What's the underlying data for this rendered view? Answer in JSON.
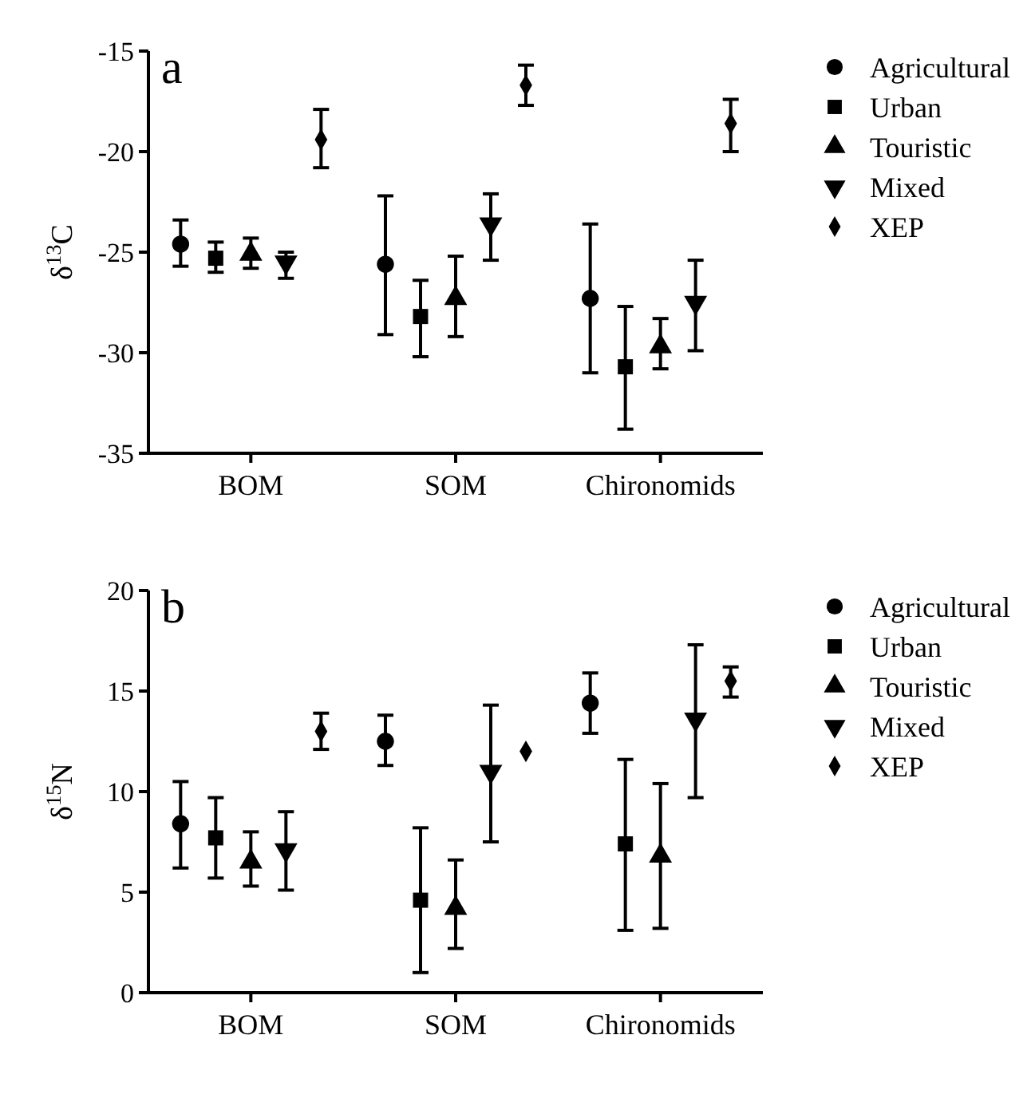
{
  "chart_data": [
    {
      "type": "scatter",
      "title": "a",
      "ylabel": "δ$^{13}$C",
      "categories": [
        "BOM",
        "SOM",
        "Chironomids"
      ],
      "ylim": [
        -35,
        -15
      ],
      "yticks": [
        -35,
        -30,
        -25,
        -20,
        -15
      ],
      "legend": "right",
      "grid": false,
      "series": [
        {
          "name": "Agricultural",
          "color": "#000000",
          "marker": "circle",
          "values": [
            -24.6,
            -25.6,
            -27.3
          ],
          "errors": [
            [
              -25.7,
              -23.4
            ],
            [
              -29.1,
              -22.2
            ],
            [
              -31.0,
              -23.6
            ]
          ]
        },
        {
          "name": "Urban",
          "color": "#000000",
          "marker": "square",
          "values": [
            -25.3,
            -28.2,
            -30.7
          ],
          "errors": [
            [
              -26.0,
              -24.5
            ],
            [
              -30.2,
              -26.4
            ],
            [
              -33.8,
              -27.7
            ]
          ]
        },
        {
          "name": "Touristic",
          "color": "#000000",
          "marker": "triangle",
          "values": [
            -25.1,
            -27.3,
            -29.7
          ],
          "errors": [
            [
              -25.8,
              -24.3
            ],
            [
              -29.2,
              -25.2
            ],
            [
              -30.8,
              -28.3
            ]
          ]
        },
        {
          "name": "Mixed",
          "color": "#000000",
          "marker": "triangle-down",
          "values": [
            -25.5,
            -23.6,
            -27.5
          ],
          "errors": [
            [
              -26.3,
              -25.0
            ],
            [
              -25.4,
              -22.1
            ],
            [
              -29.9,
              -25.4
            ]
          ]
        },
        {
          "name": "XEP",
          "color": "#000000",
          "marker": "diamond",
          "values": [
            -19.4,
            -16.7,
            -18.6
          ],
          "errors": [
            [
              -20.8,
              -17.9
            ],
            [
              -17.7,
              -15.7
            ],
            [
              -20.0,
              -17.4
            ]
          ]
        }
      ]
    },
    {
      "type": "scatter",
      "title": "b",
      "ylabel": "δ$^{15}$N",
      "categories": [
        "BOM",
        "SOM",
        "Chironomids"
      ],
      "ylim": [
        0,
        20
      ],
      "yticks": [
        0,
        5,
        10,
        15,
        20
      ],
      "legend": "right",
      "grid": false,
      "series": [
        {
          "name": "Agricultural",
          "color": "#000000",
          "marker": "circle",
          "values": [
            8.4,
            12.5,
            14.4
          ],
          "errors": [
            [
              6.2,
              10.5
            ],
            [
              11.3,
              13.8
            ],
            [
              12.9,
              15.9
            ]
          ]
        },
        {
          "name": "Urban",
          "color": "#000000",
          "marker": "square",
          "values": [
            7.7,
            4.6,
            7.4
          ],
          "errors": [
            [
              5.7,
              9.7
            ],
            [
              1.0,
              8.2
            ],
            [
              3.1,
              11.6
            ]
          ]
        },
        {
          "name": "Touristic",
          "color": "#000000",
          "marker": "triangle",
          "values": [
            6.5,
            4.2,
            6.8
          ],
          "errors": [
            [
              5.3,
              8.0
            ],
            [
              2.2,
              6.6
            ],
            [
              3.2,
              10.4
            ]
          ]
        },
        {
          "name": "Mixed",
          "color": "#000000",
          "marker": "triangle-down",
          "values": [
            7.1,
            11.0,
            13.6
          ],
          "errors": [
            [
              5.1,
              9.0
            ],
            [
              7.5,
              14.3
            ],
            [
              9.7,
              17.3
            ]
          ]
        },
        {
          "name": "XEP",
          "color": "#000000",
          "marker": "diamond",
          "values": [
            13.0,
            12.0,
            15.5
          ],
          "errors": [
            [
              12.1,
              13.9
            ],
            null,
            [
              14.7,
              16.2
            ]
          ]
        }
      ]
    }
  ]
}
